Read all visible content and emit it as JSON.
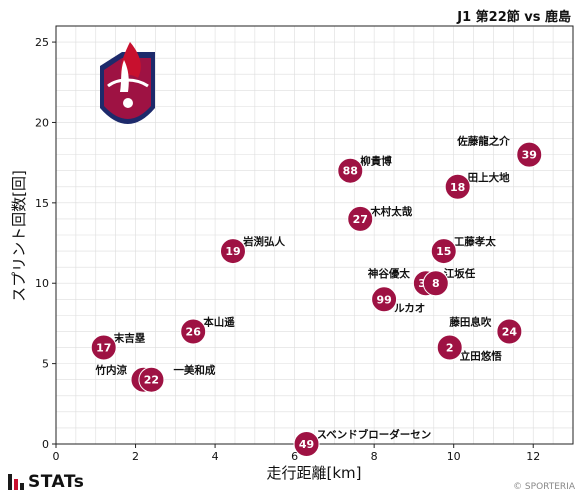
{
  "header": {
    "title": "J1 第22節 vs 鹿島"
  },
  "footer": {
    "brand": "STATs",
    "copyright": "© SPORTERIA"
  },
  "colors": {
    "marker": "#9e1243",
    "marker_text": "#ffffff",
    "grid": "#dddddd",
    "stats_bar_1": "#1a1a1a",
    "stats_bar_2": "#c8102e",
    "stats_bar_3": "#1a1a1a"
  },
  "chart_data": {
    "type": "scatter",
    "title": "",
    "xlabel": "走行距離[km]",
    "ylabel": "スプリント回数[回]",
    "xlim": [
      0,
      13
    ],
    "ylim": [
      0,
      26
    ],
    "xticks": [
      0,
      2,
      4,
      6,
      8,
      10,
      12
    ],
    "yticks": [
      0,
      5,
      10,
      15,
      20,
      25
    ],
    "grid": true,
    "points": [
      {
        "number": "39",
        "name": "佐藤龍之介",
        "x": 11.9,
        "y": 18
      },
      {
        "number": "18",
        "name": "田上大地",
        "x": 10.1,
        "y": 16
      },
      {
        "number": "88",
        "name": "柳貴博",
        "x": 7.4,
        "y": 17
      },
      {
        "number": "27",
        "name": "木村太哉",
        "x": 7.65,
        "y": 14
      },
      {
        "number": "15",
        "name": "工藤孝太",
        "x": 9.75,
        "y": 12
      },
      {
        "number": "19",
        "name": "岩渕弘人",
        "x": 4.45,
        "y": 12
      },
      {
        "number": "33",
        "name": "神谷優太",
        "x": 9.3,
        "y": 10
      },
      {
        "number": "8",
        "name": "江坂任",
        "x": 9.55,
        "y": 10
      },
      {
        "number": "99",
        "name": "ルカオ",
        "x": 8.25,
        "y": 9
      },
      {
        "number": "24",
        "name": "藤田息吹",
        "x": 11.4,
        "y": 7
      },
      {
        "number": "2",
        "name": "立田悠悟",
        "x": 9.9,
        "y": 6
      },
      {
        "number": "26",
        "name": "本山遥",
        "x": 3.45,
        "y": 7
      },
      {
        "number": "17",
        "name": "末吉塁",
        "x": 1.2,
        "y": 6
      },
      {
        "number": "4",
        "name": "竹内涼",
        "x": 2.2,
        "y": 4
      },
      {
        "number": "22",
        "name": "一美和成",
        "x": 2.4,
        "y": 4
      },
      {
        "number": "49",
        "name": "スベンドブローダーセン",
        "x": 6.3,
        "y": 0
      }
    ]
  }
}
